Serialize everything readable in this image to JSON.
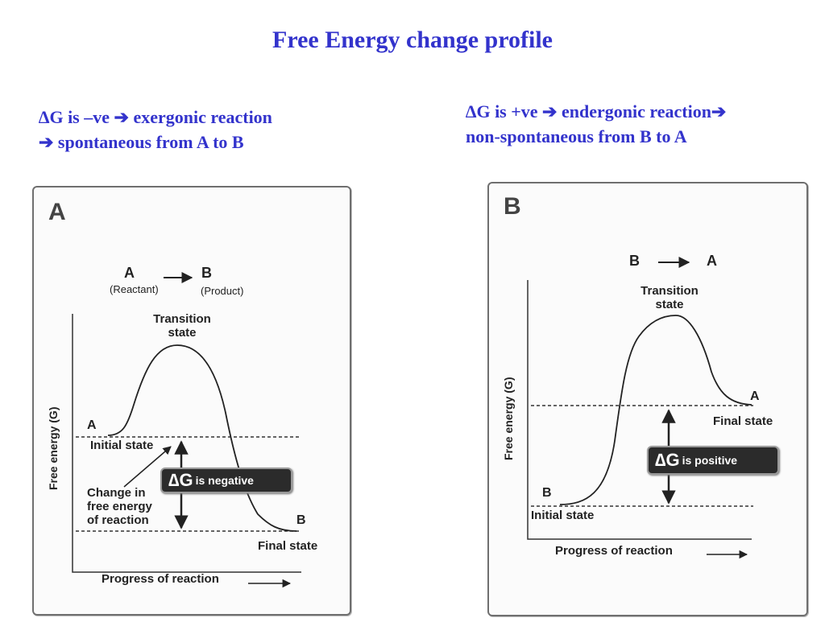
{
  "title": "Free Energy change profile",
  "left_caption": {
    "line1": "∆G is –ve ➔ exergonic reaction",
    "line2": "➔ spontaneous from A to B"
  },
  "right_caption": {
    "line1": "∆G is +ve ➔ endergonic reaction➔",
    "line2": "non-spontaneous from B to A"
  },
  "panel_a": {
    "panel_label": "A",
    "equation": {
      "from": "A",
      "to": "B",
      "from_sub": "(Reactant)",
      "to_sub": "(Product)"
    },
    "transition_state": [
      "Transition",
      "state"
    ],
    "start_point": "A",
    "end_point": "B",
    "initial_state": "Initial state",
    "final_state": "Final state",
    "change_note": [
      "Change in",
      "free energy",
      "of reaction"
    ],
    "delta_symbol": "∆G",
    "delta_text": "is negative",
    "x_axis": "Progress of reaction",
    "y_axis": "Free energy (G)"
  },
  "panel_b": {
    "panel_label": "B",
    "equation": {
      "from": "B",
      "to": "A"
    },
    "transition_state": [
      "Transition",
      "state"
    ],
    "start_point": "B",
    "end_point": "A",
    "initial_state": "Initial state",
    "final_state": "Final state",
    "delta_symbol": "∆G",
    "delta_text": "is positive",
    "x_axis": "Progress of reaction",
    "y_axis": "Free energy (G)"
  },
  "colors": {
    "title": "#3333cc",
    "ink": "#222222",
    "badge": "#2b2b2b"
  }
}
